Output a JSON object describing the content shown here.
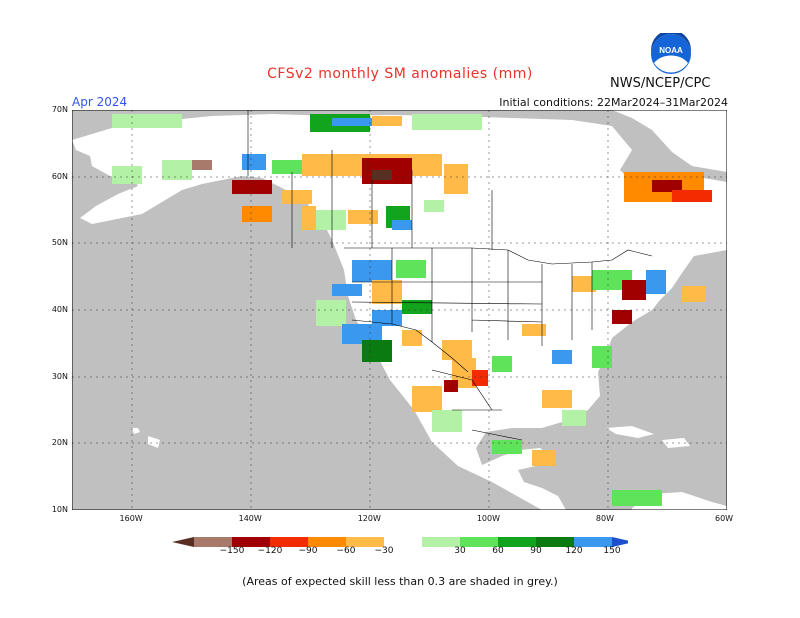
{
  "title": "CFSv2 monthly SM anomalies (mm)",
  "agency": "NWS/NCEP/CPC",
  "logo_text": "NOAA",
  "period": "Apr 2024",
  "initial_conditions": "Initial conditions: 22Mar2024–31Mar2024",
  "footnote": "(Areas of expected skill less than 0.3 are shaded in grey.)",
  "map": {
    "lat_labels": [
      "70N",
      "60N",
      "50N",
      "40N",
      "30N",
      "20N",
      "10N"
    ],
    "lon_labels": [
      "160W",
      "140W",
      "120W",
      "100W",
      "80W",
      "60W"
    ],
    "lon_range": [
      -170,
      -60
    ],
    "lat_range": [
      10,
      70
    ],
    "ocean_color": "#c0c0c0",
    "land_color": "#ffffff"
  },
  "colorbar": {
    "ticks": [
      "−150",
      "−120",
      "−90",
      "−60",
      "−30",
      "30",
      "60",
      "90",
      "120",
      "150"
    ],
    "colors": [
      "#5a2f23",
      "#a77a6b",
      "#a00000",
      "#f22b00",
      "#ff8a00",
      "#ffba48",
      "#ffffff",
      "#b3f2a6",
      "#5fe35a",
      "#13a41e",
      "#0a7b10",
      "#3a98ee",
      "#1f4fcf"
    ]
  }
}
